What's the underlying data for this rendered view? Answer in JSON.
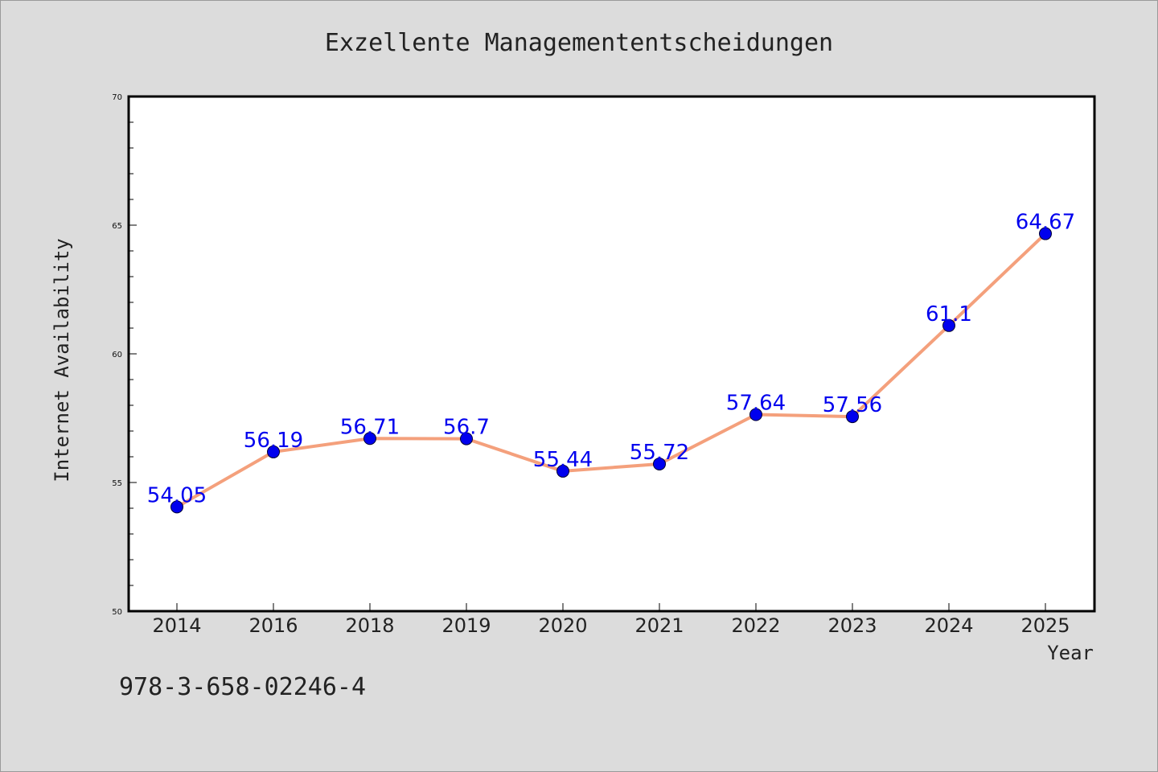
{
  "colors": {
    "background": "#dcdcdc",
    "plot_background": "#ffffff",
    "line": "#f4a07c",
    "marker": "#0000ee",
    "data_label": "#0000ee",
    "axis": "#000000"
  },
  "footer": {
    "text": "978-3-658-02246-4"
  },
  "chart_data": {
    "type": "line",
    "title": "Exzellente Managemententscheidungen",
    "xlabel": "Year",
    "ylabel": "Internet Availability",
    "categories": [
      "2014",
      "2016",
      "2018",
      "2019",
      "2020",
      "2021",
      "2022",
      "2023",
      "2024",
      "2025"
    ],
    "series": [
      {
        "values": [
          54.05,
          56.19,
          56.71,
          56.7,
          55.44,
          55.72,
          57.64,
          57.56,
          61.1,
          64.67
        ]
      }
    ],
    "data_labels": [
      "54.05",
      "56.19",
      "56.71",
      "56.7",
      "55.44",
      "55.72",
      "57.64",
      "57.56",
      "61.1",
      "64.67"
    ],
    "ylim": [
      50,
      70
    ],
    "yticks": [
      50,
      55,
      60,
      65,
      70
    ],
    "grid": false,
    "legend": "none"
  }
}
